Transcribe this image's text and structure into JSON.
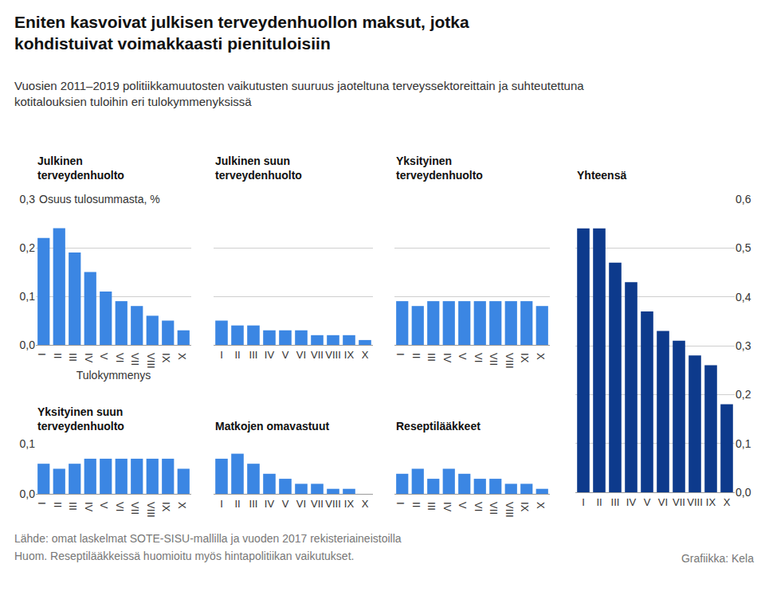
{
  "title": "Eniten kasvoivat julkisen terveydenhuollon maksut, jotka kohdistuivat voimakkaasti pienituloisiin",
  "subtitle": "Vuosien 2011–2019 politiikkamuutosten vaikutusten suuruus jaoteltuna terveyssektoreittain ja suhteutettuna kotitalouksien tuloihin eri tulokymmenyksissä",
  "source": "Lähde: omat laskelmat SOTE-SISU-mallilla ja vuoden 2017 rekisteriaineistoilla",
  "note": "Huom. Reseptilääkkeissä huomioitu myös hintapolitiikan vaikutukset.",
  "credit": "Grafiikka: Kela",
  "chart_data": [
    {
      "type": "bar",
      "title": "Julkinen terveydenhuolto",
      "ylabel": "Osuus tulosummasta, %",
      "xlabel": "Tulokymmenys",
      "categories": [
        "I",
        "II",
        "III",
        "IV",
        "V",
        "VI",
        "VII",
        "VIII",
        "IX",
        "X"
      ],
      "values": [
        0.22,
        0.24,
        0.19,
        0.15,
        0.11,
        0.09,
        0.08,
        0.06,
        0.05,
        0.03
      ],
      "color": "#3b86e3",
      "ylim": [
        0,
        0.3
      ],
      "yticks": [
        {
          "value": 0,
          "label": "0,0"
        },
        {
          "value": 0.1,
          "label": "0,1"
        },
        {
          "value": 0.2,
          "label": "0,2"
        },
        {
          "value": 0.3,
          "label": "0,3"
        }
      ],
      "grid": true
    },
    {
      "type": "bar",
      "title": "Julkinen suun terveydenhuolto",
      "categories": [
        "I",
        "II",
        "III",
        "IV",
        "V",
        "VI",
        "VII",
        "VIII",
        "IX",
        "X"
      ],
      "values": [
        0.05,
        0.04,
        0.04,
        0.03,
        0.03,
        0.03,
        0.02,
        0.02,
        0.02,
        0.01
      ],
      "color": "#3b86e3",
      "ylim": [
        0,
        0.3
      ],
      "yticks": [
        {
          "value": 0,
          "label": "0,0"
        },
        {
          "value": 0.1,
          "label": "0,1"
        },
        {
          "value": 0.2,
          "label": "0,2"
        },
        {
          "value": 0.3,
          "label": "0,3"
        }
      ],
      "grid": true,
      "tick_labels": "x"
    },
    {
      "type": "bar",
      "title": "Yksityinen terveydenhuolto",
      "categories": [
        "I",
        "II",
        "III",
        "IV",
        "V",
        "VI",
        "VII",
        "VIII",
        "IX",
        "X"
      ],
      "values": [
        0.09,
        0.08,
        0.09,
        0.09,
        0.09,
        0.09,
        0.09,
        0.09,
        0.09,
        0.08
      ],
      "color": "#3b86e3",
      "ylim": [
        0,
        0.3
      ],
      "yticks": [
        {
          "value": 0,
          "label": "0,0"
        },
        {
          "value": 0.1,
          "label": "0,1"
        },
        {
          "value": 0.2,
          "label": "0,2"
        },
        {
          "value": 0.3,
          "label": "0,3"
        }
      ],
      "grid": true,
      "tick_labels": "x"
    },
    {
      "type": "bar",
      "title": "Yksityinen suun terveydenhuolto",
      "categories": [
        "I",
        "II",
        "III",
        "IV",
        "V",
        "VI",
        "VII",
        "VIII",
        "IX",
        "X"
      ],
      "values": [
        0.06,
        0.05,
        0.06,
        0.07,
        0.07,
        0.07,
        0.07,
        0.07,
        0.07,
        0.05
      ],
      "color": "#3b86e3",
      "ylim": [
        0,
        0.1
      ],
      "yticks": [
        {
          "value": 0,
          "label": "0,0"
        },
        {
          "value": 0.1,
          "label": "0,1"
        }
      ],
      "grid": true
    },
    {
      "type": "bar",
      "title": "Matkojen omavastuut",
      "categories": [
        "I",
        "II",
        "III",
        "IV",
        "V",
        "VI",
        "VII",
        "VIII",
        "IX",
        "X"
      ],
      "values": [
        0.07,
        0.08,
        0.06,
        0.04,
        0.03,
        0.02,
        0.02,
        0.01,
        0.01,
        0.0
      ],
      "color": "#3b86e3",
      "ylim": [
        0,
        0.1
      ],
      "yticks": [
        {
          "value": 0,
          "label": "0,0"
        },
        {
          "value": 0.1,
          "label": "0,1"
        }
      ],
      "grid": true,
      "tick_labels": "x"
    },
    {
      "type": "bar",
      "title": "Reseptilääkkeet",
      "categories": [
        "I",
        "II",
        "III",
        "IV",
        "V",
        "VI",
        "VII",
        "VIII",
        "IX",
        "X"
      ],
      "values": [
        0.04,
        0.05,
        0.03,
        0.05,
        0.04,
        0.03,
        0.03,
        0.02,
        0.02,
        0.01
      ],
      "color": "#3b86e3",
      "ylim": [
        0,
        0.1
      ],
      "yticks": [
        {
          "value": 0,
          "label": "0,0"
        },
        {
          "value": 0.1,
          "label": "0,1"
        }
      ],
      "grid": true,
      "tick_labels": "x"
    },
    {
      "type": "bar",
      "title": "Yhteensä",
      "categories": [
        "I",
        "II",
        "III",
        "IV",
        "V",
        "VI",
        "VII",
        "VIII",
        "IX",
        "X"
      ],
      "values": [
        0.54,
        0.54,
        0.47,
        0.43,
        0.37,
        0.33,
        0.31,
        0.28,
        0.26,
        0.18
      ],
      "color": "#0d3a8c",
      "ylim": [
        0,
        0.6
      ],
      "yticks": [
        {
          "value": 0,
          "label": "0,0"
        },
        {
          "value": 0.1,
          "label": "0,1"
        },
        {
          "value": 0.2,
          "label": "0,2"
        },
        {
          "value": 0.3,
          "label": "0,3"
        },
        {
          "value": 0.4,
          "label": "0,4"
        },
        {
          "value": 0.5,
          "label": "0,5"
        },
        {
          "value": 0.6,
          "label": "0,6"
        }
      ],
      "grid": true
    }
  ]
}
